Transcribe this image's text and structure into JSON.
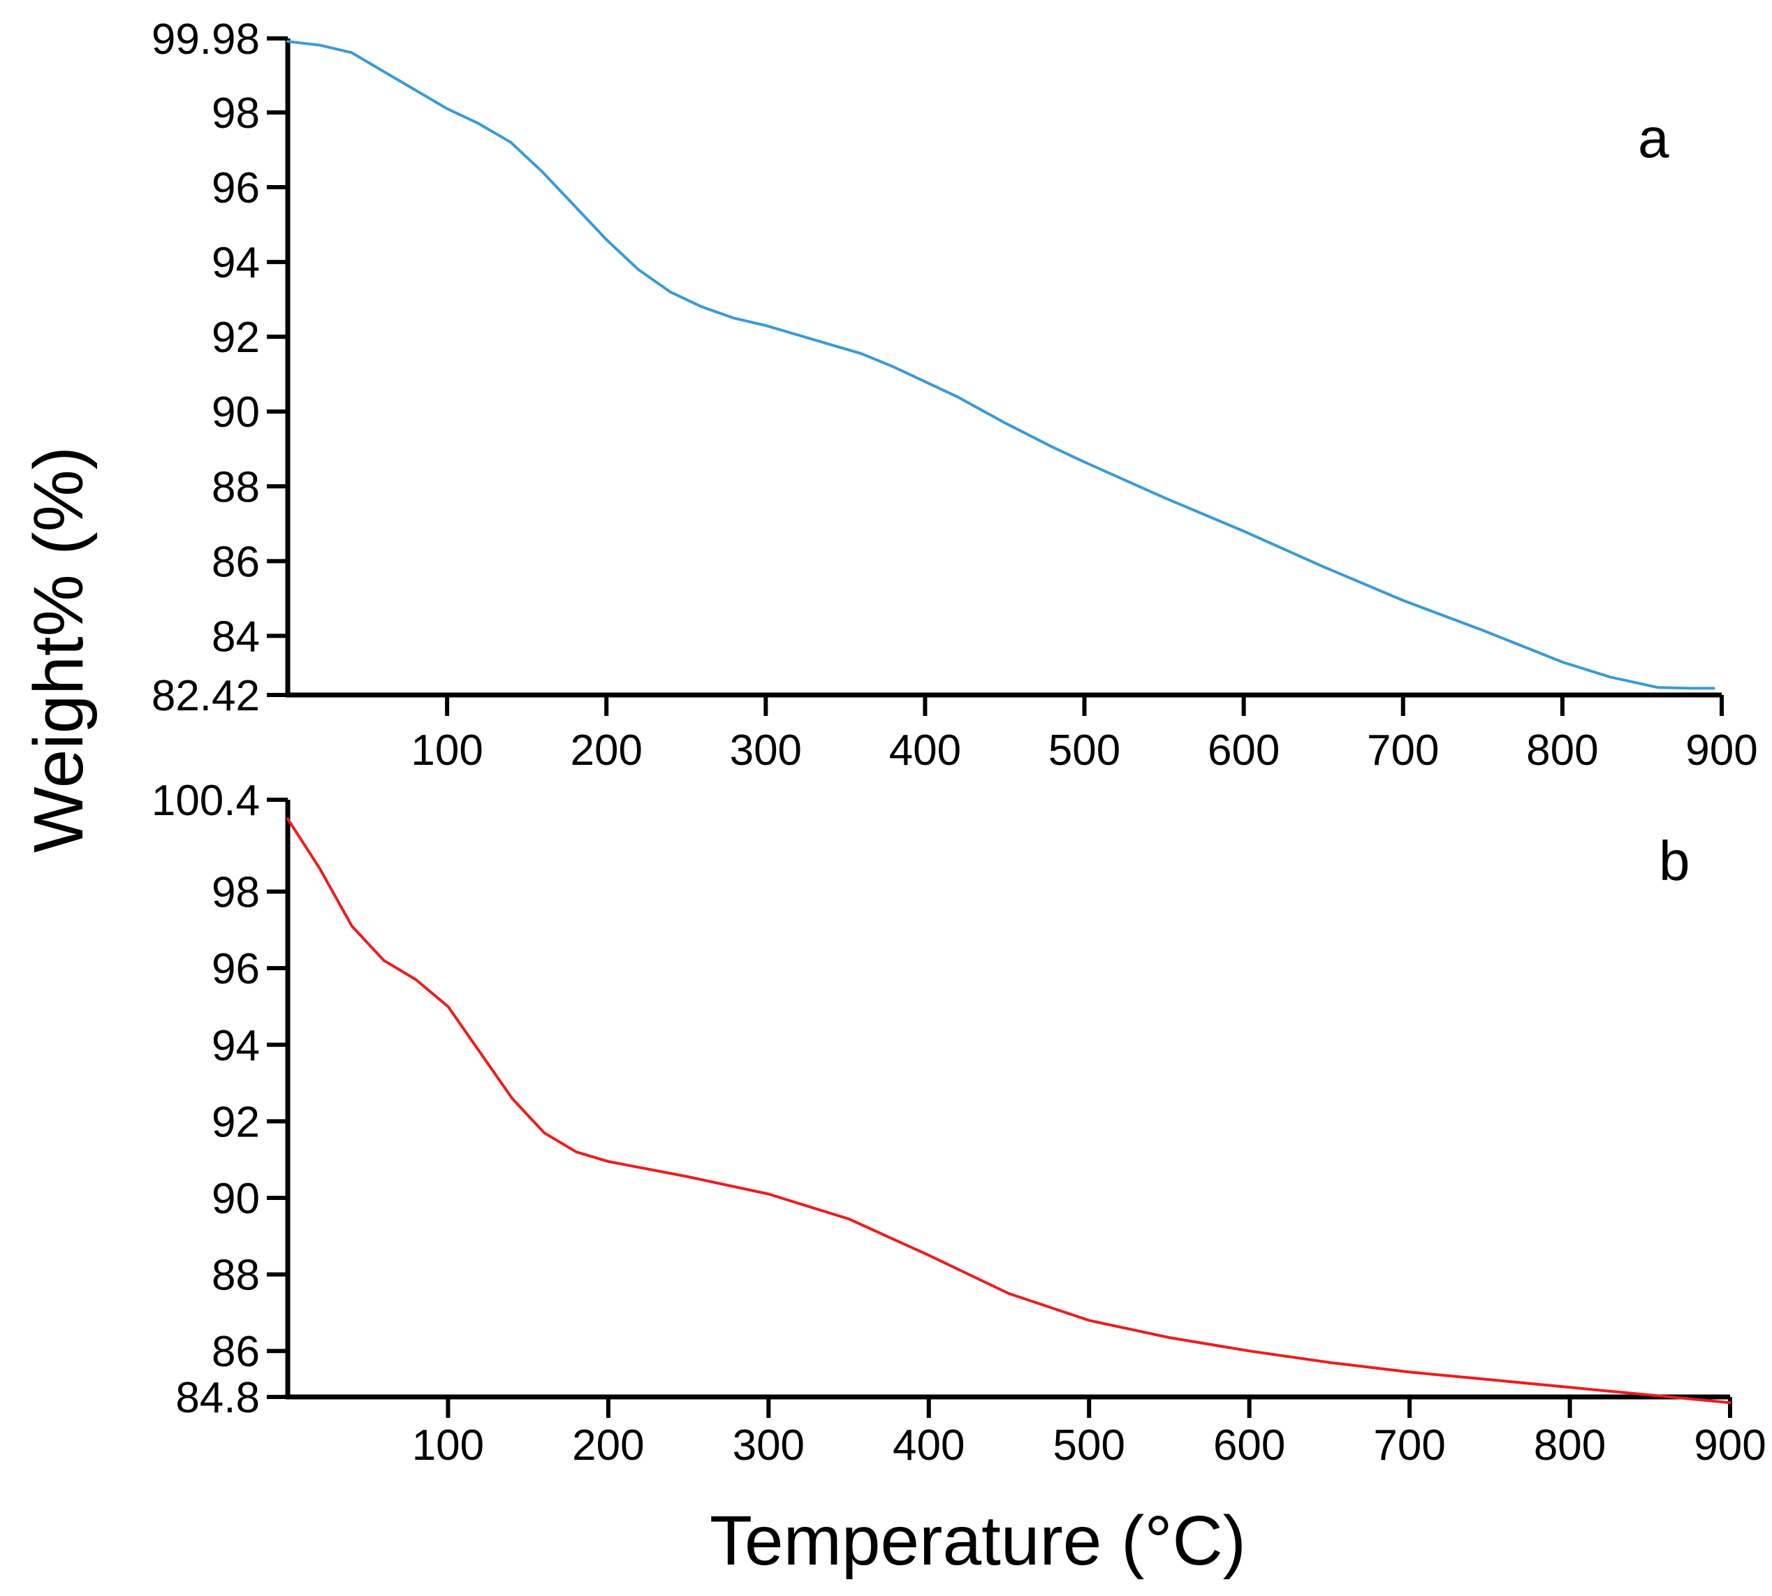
{
  "chart_data": [
    {
      "type": "line",
      "panel_label": "a",
      "xlim": [
        0,
        900
      ],
      "ylim": [
        82.42,
        99.98
      ],
      "x_ticks": [
        100,
        200,
        300,
        400,
        500,
        600,
        700,
        800,
        900
      ],
      "y_ticks": [
        82.42,
        84,
        86,
        88,
        90,
        92,
        94,
        96,
        98,
        99.98
      ],
      "y_tick_labels": [
        "82.42",
        "84",
        "86",
        "88",
        "90",
        "92",
        "94",
        "96",
        "98",
        "99.98"
      ],
      "grid": false,
      "series": [
        {
          "color": "#3a9ad9",
          "x": [
            0,
            20,
            40,
            60,
            80,
            100,
            120,
            140,
            160,
            180,
            200,
            220,
            240,
            260,
            280,
            300,
            320,
            340,
            360,
            380,
            400,
            420,
            450,
            480,
            500,
            550,
            600,
            650,
            700,
            750,
            800,
            830,
            860,
            880,
            895
          ],
          "y": [
            99.9,
            99.8,
            99.6,
            99.1,
            98.6,
            98.1,
            97.7,
            97.2,
            96.4,
            95.5,
            94.6,
            93.8,
            93.2,
            92.8,
            92.5,
            92.3,
            92.05,
            91.8,
            91.55,
            91.2,
            90.8,
            90.4,
            89.7,
            89.05,
            88.65,
            87.7,
            86.8,
            85.85,
            84.95,
            84.15,
            83.3,
            82.9,
            82.62,
            82.6,
            82.6
          ]
        }
      ]
    },
    {
      "type": "line",
      "panel_label": "b",
      "xlim": [
        0,
        900
      ],
      "ylim": [
        84.8,
        100.4
      ],
      "x_ticks": [
        100,
        200,
        300,
        400,
        500,
        600,
        700,
        800,
        900
      ],
      "y_ticks": [
        84.8,
        86,
        88,
        90,
        92,
        94,
        96,
        98,
        100.4
      ],
      "y_tick_labels": [
        "84.8",
        "86",
        "88",
        "90",
        "92",
        "94",
        "96",
        "98",
        "100.4"
      ],
      "grid": false,
      "series": [
        {
          "color": "#ee1c1c",
          "x": [
            0,
            20,
            40,
            60,
            80,
            100,
            120,
            140,
            160,
            180,
            200,
            250,
            300,
            350,
            400,
            450,
            500,
            550,
            600,
            650,
            700,
            750,
            800,
            850,
            900
          ],
          "y": [
            99.9,
            98.6,
            97.1,
            96.2,
            95.7,
            95.0,
            93.8,
            92.6,
            91.7,
            91.2,
            90.95,
            90.55,
            90.1,
            89.45,
            88.5,
            87.5,
            86.8,
            86.35,
            86.0,
            85.7,
            85.45,
            85.25,
            85.05,
            84.85,
            84.65
          ]
        }
      ]
    }
  ],
  "axes": {
    "ylabel": "Weight% (%)",
    "xlabel": "Temperature (°C)"
  }
}
